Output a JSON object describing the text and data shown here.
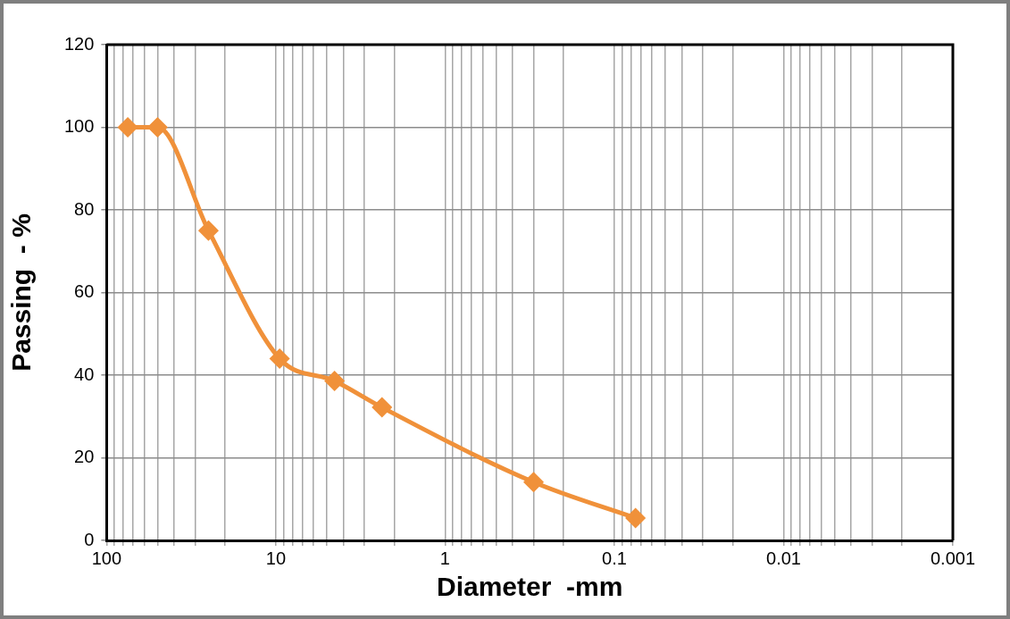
{
  "chart_data": {
    "type": "line",
    "xlabel": "Diameter  -mm",
    "ylabel": "Passing  - %",
    "log": "x",
    "x": [
      75,
      50,
      25,
      9.5,
      4.5,
      2.36,
      0.3,
      0.075
    ],
    "series": [
      {
        "color": "#f0913a",
        "values": [
          100,
          100,
          75,
          44,
          38.6,
          32.2,
          14.1,
          5.4
        ]
      }
    ],
    "xlim": [
      100,
      0.001
    ],
    "xticks": [
      100,
      {
        "value": 90,
        "label": null
      },
      {
        "value": 80,
        "label": null
      },
      {
        "value": 70,
        "label": null
      },
      {
        "value": 60,
        "label": null
      },
      {
        "value": 50,
        "label": null
      },
      {
        "value": 40,
        "label": null
      },
      {
        "value": 30,
        "label": null
      },
      {
        "value": 20,
        "label": null
      },
      10,
      {
        "value": 9,
        "label": null
      },
      {
        "value": 8,
        "label": null
      },
      {
        "value": 7,
        "label": null
      },
      {
        "value": 6,
        "label": null
      },
      {
        "value": 5,
        "label": null
      },
      {
        "value": 4,
        "label": null
      },
      {
        "value": 3,
        "label": null
      },
      {
        "value": 2,
        "label": null
      },
      1,
      {
        "value": 0.9,
        "label": null
      },
      {
        "value": 0.8,
        "label": null
      },
      {
        "value": 0.7,
        "label": null
      },
      {
        "value": 0.6,
        "label": null
      },
      {
        "value": 0.5,
        "label": null
      },
      {
        "value": 0.4,
        "label": null
      },
      {
        "value": 0.3,
        "label": null
      },
      {
        "value": 0.2,
        "label": null
      },
      0.1,
      {
        "value": 0.09,
        "label": null
      },
      {
        "value": 0.08,
        "label": null
      },
      {
        "value": 0.07,
        "label": null
      },
      {
        "value": 0.06,
        "label": null
      },
      {
        "value": 0.05,
        "label": null
      },
      {
        "value": 0.04,
        "label": null
      },
      {
        "value": 0.03,
        "label": null
      },
      {
        "value": 0.02,
        "label": null
      },
      0.01,
      {
        "value": 0.009,
        "label": null
      },
      {
        "value": 0.008,
        "label": null
      },
      {
        "value": 0.007,
        "label": null
      },
      {
        "value": 0.006,
        "label": null
      },
      {
        "value": 0.005,
        "label": null
      },
      {
        "value": 0.004,
        "label": null
      },
      {
        "value": 0.003,
        "label": null
      },
      {
        "value": 0.002,
        "label": null
      },
      0.001
    ],
    "ylim": [
      0,
      120
    ],
    "yticks": [
      0,
      20,
      40,
      60,
      80,
      100,
      120
    ],
    "grid": true,
    "marker": "diamond",
    "line_style": "solid"
  }
}
